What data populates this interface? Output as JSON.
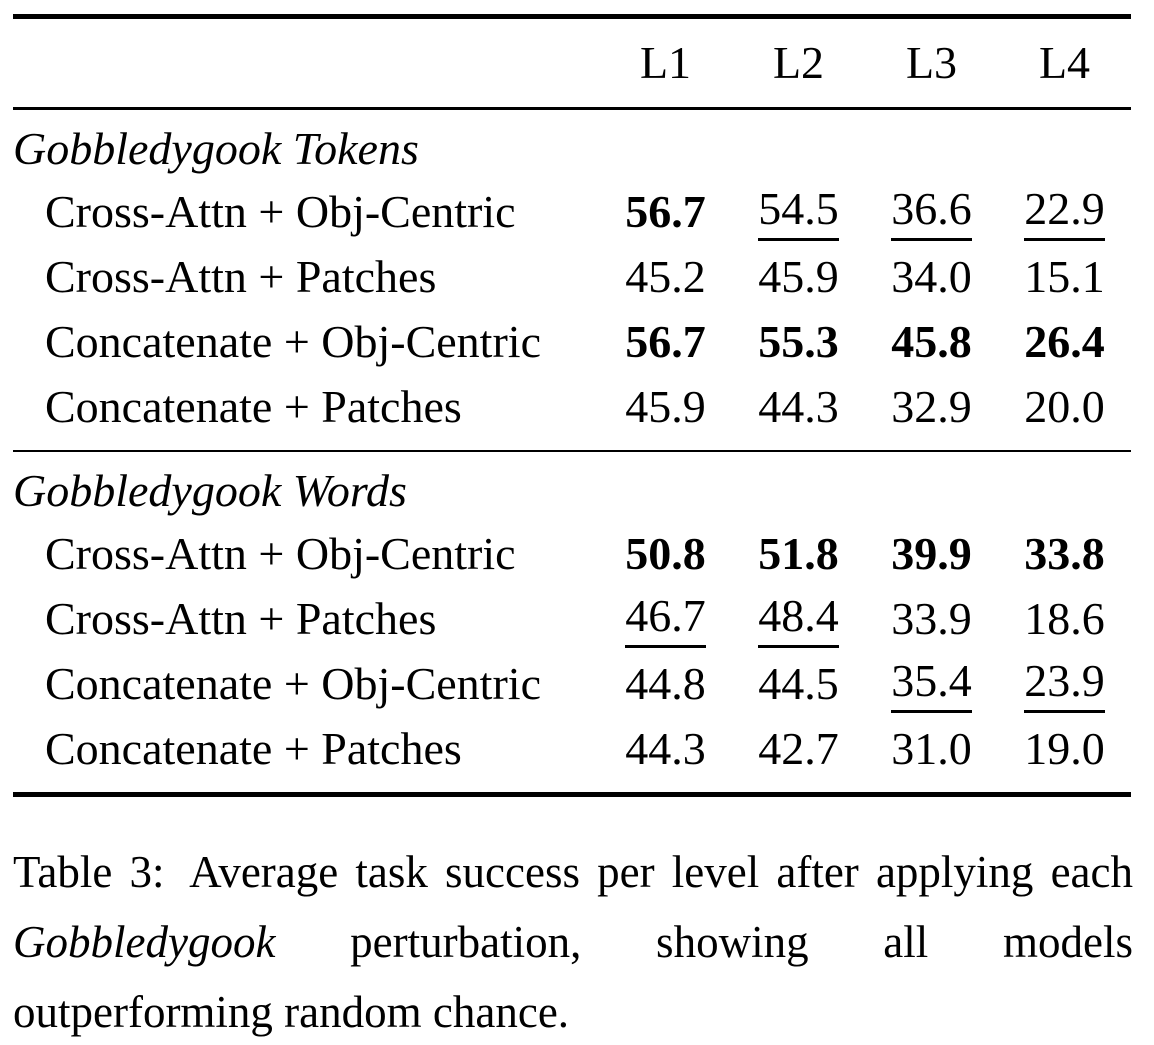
{
  "page": {
    "background_color": "#ffffff",
    "text_color": "#000000"
  },
  "table": {
    "header": {
      "columns": [
        "L1",
        "L2",
        "L3",
        "L4"
      ]
    },
    "sections": [
      {
        "title": "Gobbledygook Tokens",
        "rows": [
          {
            "label": "Cross-Attn + Obj-Centric",
            "cells": [
              {
                "value": "56.7",
                "emphasis": "bold"
              },
              {
                "value": "54.5",
                "emphasis": "underline"
              },
              {
                "value": "36.6",
                "emphasis": "underline"
              },
              {
                "value": "22.9",
                "emphasis": "underline"
              }
            ]
          },
          {
            "label": "Cross-Attn + Patches",
            "cells": [
              {
                "value": "45.2",
                "emphasis": "none"
              },
              {
                "value": "45.9",
                "emphasis": "none"
              },
              {
                "value": "34.0",
                "emphasis": "none"
              },
              {
                "value": "15.1",
                "emphasis": "none"
              }
            ]
          },
          {
            "label": "Concatenate + Obj-Centric",
            "cells": [
              {
                "value": "56.7",
                "emphasis": "bold"
              },
              {
                "value": "55.3",
                "emphasis": "bold"
              },
              {
                "value": "45.8",
                "emphasis": "bold"
              },
              {
                "value": "26.4",
                "emphasis": "bold"
              }
            ]
          },
          {
            "label": "Concatenate + Patches",
            "cells": [
              {
                "value": "45.9",
                "emphasis": "none"
              },
              {
                "value": "44.3",
                "emphasis": "none"
              },
              {
                "value": "32.9",
                "emphasis": "none"
              },
              {
                "value": "20.0",
                "emphasis": "none"
              }
            ]
          }
        ]
      },
      {
        "title": "Gobbledygook Words",
        "rows": [
          {
            "label": "Cross-Attn + Obj-Centric",
            "cells": [
              {
                "value": "50.8",
                "emphasis": "bold"
              },
              {
                "value": "51.8",
                "emphasis": "bold"
              },
              {
                "value": "39.9",
                "emphasis": "bold"
              },
              {
                "value": "33.8",
                "emphasis": "bold"
              }
            ]
          },
          {
            "label": "Cross-Attn + Patches",
            "cells": [
              {
                "value": "46.7",
                "emphasis": "underline"
              },
              {
                "value": "48.4",
                "emphasis": "underline"
              },
              {
                "value": "33.9",
                "emphasis": "none"
              },
              {
                "value": "18.6",
                "emphasis": "none"
              }
            ]
          },
          {
            "label": "Concatenate + Obj-Centric",
            "cells": [
              {
                "value": "44.8",
                "emphasis": "none"
              },
              {
                "value": "44.5",
                "emphasis": "none"
              },
              {
                "value": "35.4",
                "emphasis": "underline"
              },
              {
                "value": "23.9",
                "emphasis": "underline"
              }
            ]
          },
          {
            "label": "Concatenate + Patches",
            "cells": [
              {
                "value": "44.3",
                "emphasis": "none"
              },
              {
                "value": "42.7",
                "emphasis": "none"
              },
              {
                "value": "31.0",
                "emphasis": "none"
              },
              {
                "value": "19.0",
                "emphasis": "none"
              }
            ]
          }
        ]
      }
    ]
  },
  "caption": {
    "label": "Table 3:",
    "text_before_italic": "Average task success per level after applying each",
    "italic_term": "Gobbledygook",
    "text_after_italic": "perturbation, showing all models outperforming random chance."
  }
}
